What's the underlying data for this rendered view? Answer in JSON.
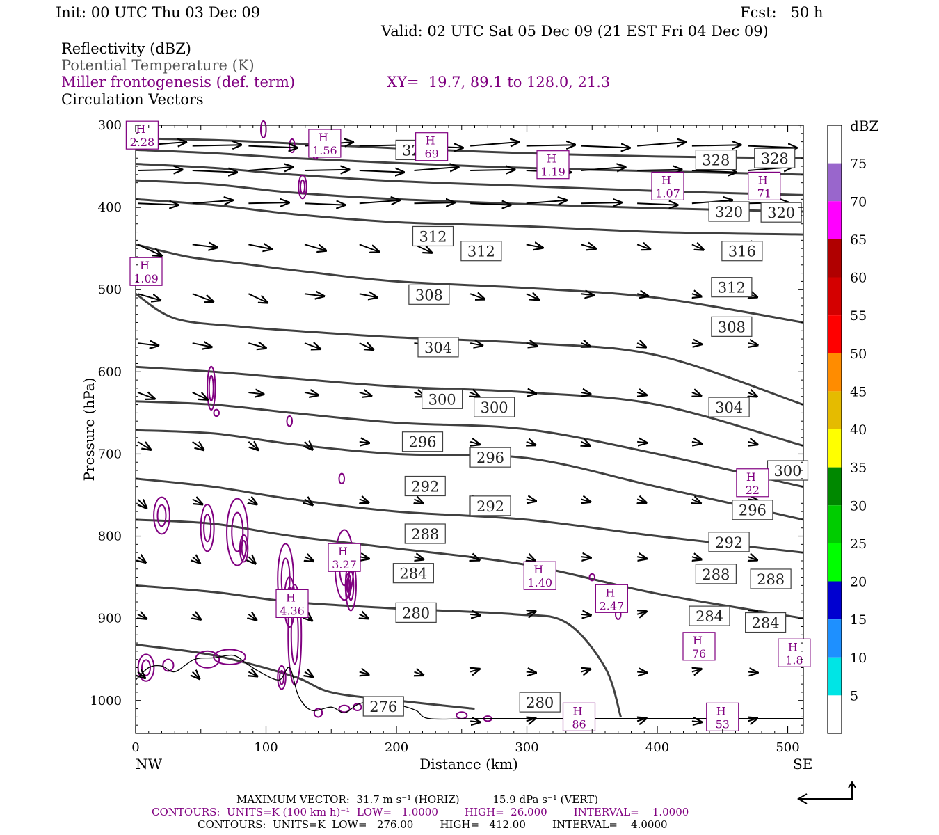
{
  "header": {
    "init": "Init: 00 UTC Thu 03 Dec 09",
    "fcst": "Fcst:   50 h",
    "valid": "Valid: 02 UTC Sat 05 Dec 09 (21 EST Fri 04 Dec 09)",
    "fields": [
      "Reflectivity (dBZ)",
      "Potential Temperature (K)",
      "Miller frontogenesis (def. term)",
      "Circulation Vectors"
    ],
    "xy": "XY=  19.7, 89.1 to 128.0, 21.3"
  },
  "footer": {
    "max_vector": "MAXIMUM VECTOR:  31.7 m s⁻¹ (HORIZ)          15.9 dPa s⁻¹ (VERT)",
    "contours1": "CONTOURS:  UNITS=K (100 km h)⁻¹  LOW=   1.0000        HIGH=  26.000        INTERVAL=    1.0000",
    "contours2": "CONTOURS:  UNITS=K  LOW=   276.00        HIGH=   412.00        INTERVAL=    4.0000"
  },
  "colorbar": {
    "unit": "dBZ",
    "levels": [
      "5",
      "10",
      "15",
      "20",
      "25",
      "30",
      "35",
      "40",
      "45",
      "50",
      "55",
      "60",
      "65",
      "70",
      "75"
    ],
    "colors": [
      "#ffffff",
      "#00e5e5",
      "#1e90ff",
      "#0000d0",
      "#00ff00",
      "#00cc00",
      "#008800",
      "#ffff00",
      "#e5bb00",
      "#ff8c00",
      "#ff0000",
      "#d40000",
      "#b00000",
      "#ff00ff",
      "#9966cc",
      "#ffffff"
    ]
  },
  "chart_data": {
    "type": "line",
    "xlabel": "Distance (km)",
    "ylabel": "Pressure (hPa)",
    "xlim": [
      0,
      512
    ],
    "ylim": [
      1040,
      300
    ],
    "x_ticks": [
      "0",
      "100",
      "200",
      "300",
      "400",
      "500"
    ],
    "y_ticks": [
      "300",
      "400",
      "500",
      "600",
      "700",
      "800",
      "900",
      "1000"
    ],
    "x_end_labels": {
      "left": "NW",
      "right": "SE"
    },
    "theta_contours": [
      {
        "value": 328,
        "points": [
          [
            0,
            316
          ],
          [
            60,
            318
          ],
          [
            120,
            322
          ],
          [
            200,
            328
          ],
          [
            300,
            334
          ],
          [
            400,
            338
          ],
          [
            512,
            340
          ]
        ]
      },
      {
        "value": 324,
        "points": [
          [
            0,
            330
          ],
          [
            60,
            334
          ],
          [
            120,
            340
          ],
          [
            200,
            346
          ],
          [
            300,
            352
          ],
          [
            400,
            356
          ],
          [
            512,
            360
          ]
        ]
      },
      {
        "value": 320,
        "points": [
          [
            0,
            347
          ],
          [
            60,
            352
          ],
          [
            120,
            360
          ],
          [
            200,
            368
          ],
          [
            300,
            374
          ],
          [
            400,
            380
          ],
          [
            512,
            385
          ]
        ]
      },
      {
        "value": 316,
        "points": [
          [
            0,
            367
          ],
          [
            60,
            372
          ],
          [
            120,
            382
          ],
          [
            200,
            390
          ],
          [
            300,
            396
          ],
          [
            400,
            401
          ],
          [
            512,
            405
          ]
        ]
      },
      {
        "value": 312,
        "points": [
          [
            0,
            390
          ],
          [
            60,
            397
          ],
          [
            120,
            408
          ],
          [
            200,
            418
          ],
          [
            300,
            423
          ],
          [
            400,
            430
          ],
          [
            512,
            433
          ]
        ]
      },
      {
        "value": 308,
        "points": [
          [
            0,
            445
          ],
          [
            40,
            460
          ],
          [
            80,
            468
          ],
          [
            130,
            478
          ],
          [
            200,
            490
          ],
          [
            300,
            498
          ],
          [
            400,
            510
          ],
          [
            512,
            540
          ]
        ]
      },
      {
        "value": 304,
        "points": [
          [
            0,
            505
          ],
          [
            30,
            535
          ],
          [
            80,
            545
          ],
          [
            140,
            552
          ],
          [
            200,
            558
          ],
          [
            300,
            565
          ],
          [
            400,
            580
          ],
          [
            512,
            640
          ]
        ]
      },
      {
        "value": 300,
        "points": [
          [
            0,
            594
          ],
          [
            60,
            600
          ],
          [
            120,
            608
          ],
          [
            200,
            618
          ],
          [
            300,
            625
          ],
          [
            400,
            640
          ],
          [
            512,
            690
          ]
        ]
      },
      {
        "value": 296,
        "points": [
          [
            0,
            636
          ],
          [
            60,
            640
          ],
          [
            120,
            650
          ],
          [
            200,
            662
          ],
          [
            300,
            670
          ],
          [
            400,
            700
          ],
          [
            512,
            740
          ]
        ]
      },
      {
        "value": 292,
        "points": [
          [
            0,
            671
          ],
          [
            60,
            675
          ],
          [
            120,
            688
          ],
          [
            200,
            700
          ],
          [
            300,
            705
          ],
          [
            400,
            740
          ],
          [
            512,
            780
          ]
        ]
      },
      {
        "value": 288,
        "points": [
          [
            0,
            730
          ],
          [
            60,
            740
          ],
          [
            120,
            755
          ],
          [
            200,
            770
          ],
          [
            300,
            780
          ],
          [
            400,
            800
          ],
          [
            512,
            820
          ]
        ]
      },
      {
        "value": 284,
        "points": [
          [
            0,
            780
          ],
          [
            60,
            785
          ],
          [
            120,
            800
          ],
          [
            200,
            815
          ],
          [
            300,
            835
          ],
          [
            400,
            870
          ],
          [
            512,
            900
          ]
        ]
      },
      {
        "value": 280,
        "points": [
          [
            0,
            860
          ],
          [
            60,
            868
          ],
          [
            120,
            880
          ],
          [
            200,
            888
          ],
          [
            290,
            895
          ],
          [
            330,
            905
          ],
          [
            360,
            960
          ],
          [
            372,
            1020
          ]
        ]
      },
      {
        "value": 276,
        "points": [
          [
            0,
            932
          ],
          [
            60,
            945
          ],
          [
            120,
            970
          ],
          [
            150,
            990
          ],
          [
            200,
            1000
          ],
          [
            260,
            1010
          ]
        ]
      }
    ],
    "theta_labels": [
      {
        "text": "328",
        "x": 215,
        "p": 330
      },
      {
        "text": "328",
        "x": 445,
        "p": 342
      },
      {
        "text": "328",
        "x": 490,
        "p": 340
      },
      {
        "text": "320",
        "x": 455,
        "p": 405
      },
      {
        "text": "320",
        "x": 495,
        "p": 406
      },
      {
        "text": "312",
        "x": 228,
        "p": 435
      },
      {
        "text": "312",
        "x": 265,
        "p": 453
      },
      {
        "text": "316",
        "x": 465,
        "p": 453
      },
      {
        "text": "312",
        "x": 457,
        "p": 497
      },
      {
        "text": "308",
        "x": 225,
        "p": 506
      },
      {
        "text": "308",
        "x": 457,
        "p": 545
      },
      {
        "text": "304",
        "x": 232,
        "p": 570
      },
      {
        "text": "300",
        "x": 235,
        "p": 633
      },
      {
        "text": "300",
        "x": 275,
        "p": 643
      },
      {
        "text": "304",
        "x": 455,
        "p": 643
      },
      {
        "text": "296",
        "x": 220,
        "p": 685
      },
      {
        "text": "296",
        "x": 272,
        "p": 704
      },
      {
        "text": "300",
        "x": 500,
        "p": 720
      },
      {
        "text": "292",
        "x": 222,
        "p": 739
      },
      {
        "text": "292",
        "x": 272,
        "p": 763
      },
      {
        "text": "296",
        "x": 473,
        "p": 768
      },
      {
        "text": "288",
        "x": 222,
        "p": 797
      },
      {
        "text": "292",
        "x": 455,
        "p": 807
      },
      {
        "text": "284",
        "x": 213,
        "p": 845
      },
      {
        "text": "288",
        "x": 445,
        "p": 846
      },
      {
        "text": "288",
        "x": 487,
        "p": 852
      },
      {
        "text": "280",
        "x": 215,
        "p": 893
      },
      {
        "text": "284",
        "x": 440,
        "p": 897
      },
      {
        "text": "284",
        "x": 483,
        "p": 905
      },
      {
        "text": "280",
        "x": 310,
        "p": 1002
      },
      {
        "text": "276",
        "x": 190,
        "p": 1007
      }
    ],
    "frontogenesis_maxima": [
      {
        "label": "2.28",
        "x": 5,
        "p": 312
      },
      {
        "label": "1.56",
        "x": 145,
        "p": 322
      },
      {
        "label": "69",
        "x": 227,
        "p": 326
      },
      {
        "label": "1.19",
        "x": 320,
        "p": 348
      },
      {
        "label": "1.07",
        "x": 408,
        "p": 374
      },
      {
        "label": "71",
        "x": 482,
        "p": 374
      },
      {
        "label": "1.09",
        "x": 8,
        "p": 478
      },
      {
        "label": "22",
        "x": 473,
        "p": 735
      },
      {
        "label": "3.27",
        "x": 160,
        "p": 826
      },
      {
        "label": "1.40",
        "x": 310,
        "p": 848
      },
      {
        "label": "4.36",
        "x": 120,
        "p": 882
      },
      {
        "label": "2.47",
        "x": 365,
        "p": 876
      },
      {
        "label": "76",
        "x": 432,
        "p": 934
      },
      {
        "label": "1.8",
        "x": 505,
        "p": 942
      },
      {
        "label": "86",
        "x": 340,
        "p": 1020
      },
      {
        "label": "53",
        "x": 450,
        "p": 1020
      }
    ]
  }
}
